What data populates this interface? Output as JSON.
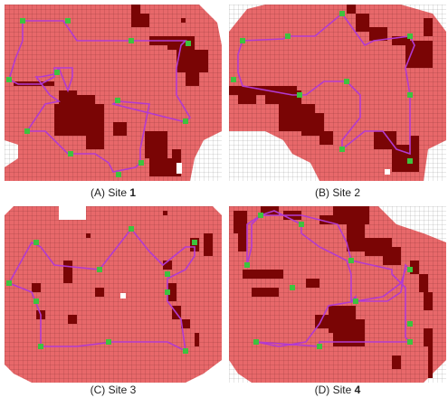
{
  "colors": {
    "coverage": "#e8686a",
    "grid_line": "#5a1a1a",
    "obstacle": "#7a0505",
    "path": "#b23ad0",
    "node": "#3ec23e",
    "outside_grid": "#9a9a9a",
    "background": "#ffffff"
  },
  "icons": {
    "node": "green-square-marker"
  },
  "panels": [
    {
      "id": "A",
      "caption_prefix": "(A) Site ",
      "caption_num": "1"
    },
    {
      "id": "B",
      "caption_prefix": "(B) Site ",
      "caption_num": "2"
    },
    {
      "id": "C",
      "caption_prefix": "(C) Site ",
      "caption_num": "3"
    },
    {
      "id": "D",
      "caption_prefix": "(D) Site ",
      "caption_num": "4"
    }
  ]
}
